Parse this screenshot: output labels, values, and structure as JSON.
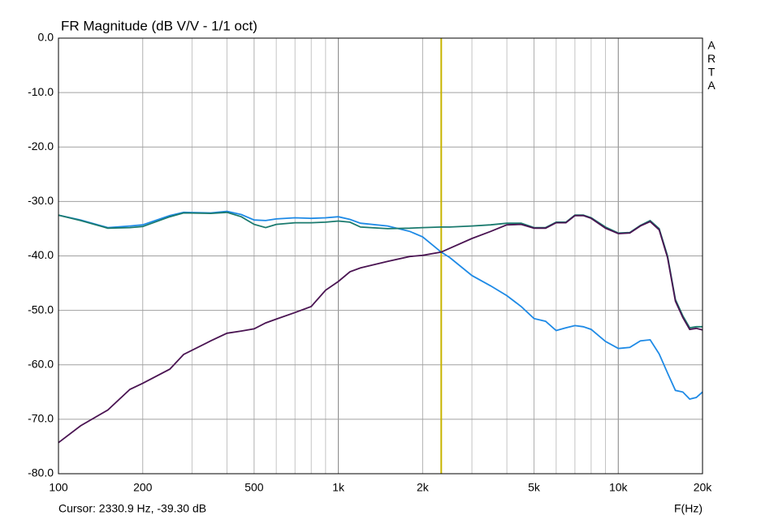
{
  "chart_data": {
    "type": "line",
    "title": "FR Magnitude (dB V/V - 1/1 oct)",
    "x_label": "F(Hz)",
    "watermark": [
      "A",
      "R",
      "T",
      "A"
    ],
    "cursor_x": 2330.9,
    "cursor_label": "Cursor: 2330.9 Hz, -39.30 dB",
    "cursor_color": "#c8b400",
    "xscale": "log",
    "grid": true,
    "xlim": [
      100,
      20000
    ],
    "xticks": [
      100,
      200,
      500,
      {
        "value": 1000,
        "label": "1k"
      },
      {
        "value": 2000,
        "label": "2k"
      },
      {
        "value": 5000,
        "label": "5k"
      },
      {
        "value": 10000,
        "label": "10k"
      },
      {
        "value": 20000,
        "label": "20k"
      }
    ],
    "xminorticks": [
      300,
      400,
      600,
      700,
      800,
      900,
      3000,
      4000,
      6000,
      7000,
      8000,
      9000
    ],
    "ylim": [
      -80,
      0
    ],
    "yticks": [
      {
        "value": 0,
        "label": "0.0"
      },
      {
        "value": -10,
        "label": "-10.0"
      },
      {
        "value": -20,
        "label": "-20.0"
      },
      {
        "value": -30,
        "label": "-30.0"
      },
      {
        "value": -40,
        "label": "-40.0"
      },
      {
        "value": -50,
        "label": "-50.0"
      },
      {
        "value": -60,
        "label": "-60.0"
      },
      {
        "value": -70,
        "label": "-70.0"
      },
      {
        "value": -80,
        "label": "-80.0"
      }
    ],
    "x": [
      100,
      120,
      150,
      180,
      200,
      250,
      280,
      350,
      400,
      450,
      500,
      550,
      600,
      700,
      800,
      900,
      1000,
      1100,
      1200,
      1500,
      1800,
      2000,
      2330,
      2500,
      3000,
      3500,
      4000,
      4500,
      5000,
      5500,
      6000,
      6500,
      7000,
      7500,
      8000,
      9000,
      10000,
      11000,
      12000,
      13000,
      14000,
      15000,
      16000,
      17000,
      18000,
      19000,
      20000
    ],
    "series": [
      {
        "color": "#1e8ae6",
        "values": [
          -32.5,
          -33.4,
          -34.8,
          -34.5,
          -34.3,
          -32.6,
          -32.0,
          -32.1,
          -31.8,
          -32.4,
          -33.4,
          -33.5,
          -33.2,
          -33.0,
          -33.1,
          -33.0,
          -32.8,
          -33.3,
          -34.0,
          -34.5,
          -35.5,
          -36.5,
          -39.3,
          -40.3,
          -43.6,
          -45.5,
          -47.3,
          -49.3,
          -51.5,
          -52.0,
          -53.7,
          -53.2,
          -52.8,
          -53.0,
          -53.5,
          -55.7,
          -57.0,
          -56.8,
          -55.6,
          -55.4,
          -58.0,
          -61.5,
          -64.7,
          -65.0,
          -66.3,
          -66.0,
          -65.0
        ]
      },
      {
        "color": "#1a7a6e",
        "values": [
          -32.5,
          -33.5,
          -34.9,
          -34.8,
          -34.6,
          -32.8,
          -32.1,
          -32.2,
          -32.0,
          -32.8,
          -34.2,
          -34.8,
          -34.2,
          -33.9,
          -33.9,
          -33.8,
          -33.6,
          -33.8,
          -34.7,
          -35.0,
          -34.9,
          -34.8,
          -34.7,
          -34.7,
          -34.5,
          -34.3,
          -34.0,
          -34.0,
          -34.8,
          -34.8,
          -33.8,
          -33.8,
          -32.5,
          -32.5,
          -33.0,
          -34.7,
          -35.8,
          -35.7,
          -34.4,
          -33.5,
          -35.0,
          -40.0,
          -48.0,
          -51.0,
          -53.2,
          -53.0,
          -53.0
        ]
      },
      {
        "color": "#4a1452",
        "values": [
          -74.3,
          -71.2,
          -68.3,
          -64.5,
          -63.4,
          -60.8,
          -58.1,
          -55.6,
          -54.2,
          -53.8,
          -53.4,
          -52.3,
          -51.6,
          -50.4,
          -49.3,
          -46.3,
          -44.7,
          -42.9,
          -42.2,
          -41.0,
          -40.1,
          -39.9,
          -39.3,
          -38.6,
          -36.8,
          -35.5,
          -34.3,
          -34.2,
          -34.9,
          -34.9,
          -33.9,
          -33.9,
          -32.6,
          -32.6,
          -33.1,
          -34.9,
          -35.9,
          -35.8,
          -34.5,
          -33.7,
          -35.2,
          -40.3,
          -48.3,
          -51.3,
          -53.5,
          -53.3,
          -53.6
        ]
      }
    ]
  }
}
